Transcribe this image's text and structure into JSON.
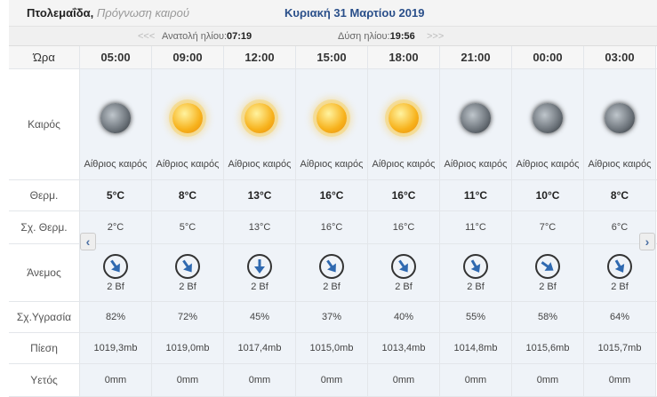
{
  "header": {
    "city": "Πτολεμαΐδα,",
    "subtitle": "Πρόγνωση καιρού",
    "date": "Κυριακή 31 Μαρτίου 2019"
  },
  "sun": {
    "prev": "<<<",
    "sunrise_label": "Ανατολή ηλίου:",
    "sunrise": "07:19",
    "sunset_label": "Δύση ηλίου:",
    "sunset": "19:56",
    "next": ">>>"
  },
  "labels": {
    "hour": "Ώρα",
    "weather": "Καιρός",
    "temp": "Θερμ.",
    "feels": "Σχ. Θερμ.",
    "wind": "Άνεμος",
    "humidity": "Σχ.Υγρασία",
    "pressure": "Πίεση",
    "rain": "Υετός"
  },
  "nav": {
    "left": "‹",
    "right": "›"
  },
  "columns": [
    {
      "hour": "05:00",
      "icon": "moon-icon",
      "desc": "Αίθριος καιρός",
      "temp": "5°C",
      "feels": "2°C",
      "wind_dir_deg": -35,
      "wind": "2 Bf",
      "humidity": "82%",
      "pressure": "1019,3mb",
      "rain": "0mm"
    },
    {
      "hour": "09:00",
      "icon": "sun-icon",
      "desc": "Αίθριος καιρός",
      "temp": "8°C",
      "feels": "5°C",
      "wind_dir_deg": -35,
      "wind": "2 Bf",
      "humidity": "72%",
      "pressure": "1019,0mb",
      "rain": "0mm"
    },
    {
      "hour": "12:00",
      "icon": "sun-icon",
      "desc": "Αίθριος καιρός",
      "temp": "13°C",
      "feels": "13°C",
      "wind_dir_deg": 0,
      "wind": "2 Bf",
      "humidity": "45%",
      "pressure": "1017,4mb",
      "rain": "0mm"
    },
    {
      "hour": "15:00",
      "icon": "sun-icon",
      "desc": "Αίθριος καιρός",
      "temp": "16°C",
      "feels": "16°C",
      "wind_dir_deg": -35,
      "wind": "2 Bf",
      "humidity": "37%",
      "pressure": "1015,0mb",
      "rain": "0mm"
    },
    {
      "hour": "18:00",
      "icon": "sun-icon",
      "desc": "Αίθριος καιρός",
      "temp": "16°C",
      "feels": "16°C",
      "wind_dir_deg": -35,
      "wind": "2 Bf",
      "humidity": "40%",
      "pressure": "1013,4mb",
      "rain": "0mm"
    },
    {
      "hour": "21:00",
      "icon": "moon-icon",
      "desc": "Αίθριος καιρός",
      "temp": "11°C",
      "feels": "11°C",
      "wind_dir_deg": -30,
      "wind": "2 Bf",
      "humidity": "55%",
      "pressure": "1014,8mb",
      "rain": "0mm"
    },
    {
      "hour": "00:00",
      "icon": "moon-icon",
      "desc": "Αίθριος καιρός",
      "temp": "10°C",
      "feels": "7°C",
      "wind_dir_deg": -55,
      "wind": "2 Bf",
      "humidity": "58%",
      "pressure": "1015,6mb",
      "rain": "0mm"
    },
    {
      "hour": "03:00",
      "icon": "moon-icon",
      "desc": "Αίθριος καιρός",
      "temp": "8°C",
      "feels": "6°C",
      "wind_dir_deg": -30,
      "wind": "2 Bf",
      "humidity": "64%",
      "pressure": "1015,7mb",
      "rain": "0mm"
    }
  ]
}
